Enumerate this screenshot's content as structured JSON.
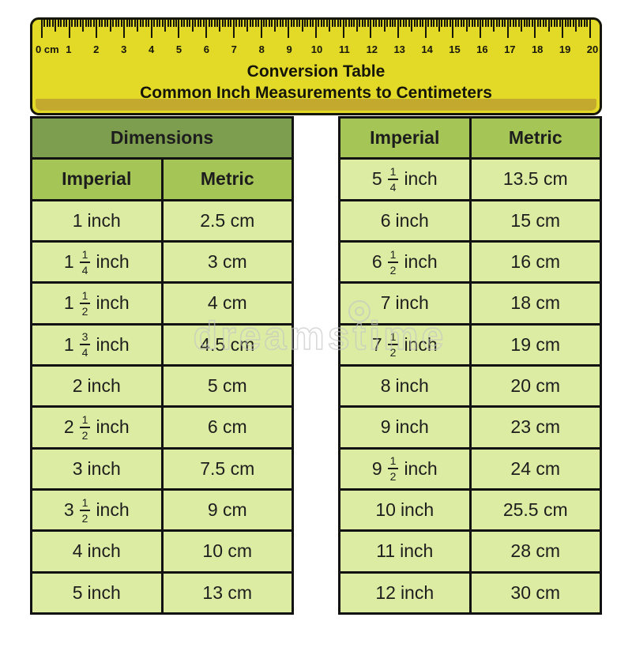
{
  "ruler": {
    "zero_label": "0 cm",
    "cm_numbers": [
      "1",
      "2",
      "3",
      "4",
      "5",
      "6",
      "7",
      "8",
      "9",
      "10",
      "11",
      "12",
      "13",
      "14",
      "15",
      "16",
      "17",
      "18",
      "19",
      "20"
    ],
    "title_line1": "Conversion Table",
    "title_line2": "Common Inch Measurements to Centimeters"
  },
  "left_table": {
    "group_header": "Dimensions",
    "col_imperial": "Imperial",
    "col_metric": "Metric",
    "rows": [
      {
        "whole": "1",
        "num": "",
        "den": "",
        "unit": "inch",
        "metric": "2.5 cm"
      },
      {
        "whole": "1",
        "num": "1",
        "den": "4",
        "unit": "inch",
        "metric": "3 cm"
      },
      {
        "whole": "1",
        "num": "1",
        "den": "2",
        "unit": "inch",
        "metric": "4 cm"
      },
      {
        "whole": "1",
        "num": "3",
        "den": "4",
        "unit": "inch",
        "metric": "4.5 cm"
      },
      {
        "whole": "2",
        "num": "",
        "den": "",
        "unit": "inch",
        "metric": "5 cm"
      },
      {
        "whole": "2",
        "num": "1",
        "den": "2",
        "unit": "inch",
        "metric": "6 cm"
      },
      {
        "whole": "3",
        "num": "",
        "den": "",
        "unit": "inch",
        "metric": "7.5 cm"
      },
      {
        "whole": "3",
        "num": "1",
        "den": "2",
        "unit": "inch",
        "metric": "9 cm"
      },
      {
        "whole": "4",
        "num": "",
        "den": "",
        "unit": "inch",
        "metric": "10 cm"
      },
      {
        "whole": "5",
        "num": "",
        "den": "",
        "unit": "inch",
        "metric": "13 cm"
      }
    ]
  },
  "right_table": {
    "col_imperial": "Imperial",
    "col_metric": "Metric",
    "rows": [
      {
        "whole": "5",
        "num": "1",
        "den": "4",
        "unit": "inch",
        "metric": "13.5 cm"
      },
      {
        "whole": "6",
        "num": "",
        "den": "",
        "unit": "inch",
        "metric": "15 cm"
      },
      {
        "whole": "6",
        "num": "1",
        "den": "2",
        "unit": "inch",
        "metric": "16 cm"
      },
      {
        "whole": "7",
        "num": "",
        "den": "",
        "unit": "inch",
        "metric": "18 cm"
      },
      {
        "whole": "7",
        "num": "1",
        "den": "2",
        "unit": "inch",
        "metric": "19 cm"
      },
      {
        "whole": "8",
        "num": "",
        "den": "",
        "unit": "inch",
        "metric": "20 cm"
      },
      {
        "whole": "9",
        "num": "",
        "den": "",
        "unit": "inch",
        "metric": "23 cm"
      },
      {
        "whole": "9",
        "num": "1",
        "den": "2",
        "unit": "inch",
        "metric": "24 cm"
      },
      {
        "whole": "10",
        "num": "",
        "den": "",
        "unit": "inch",
        "metric": "25.5 cm"
      },
      {
        "whole": "11",
        "num": "",
        "den": "",
        "unit": "inch",
        "metric": "28 cm"
      },
      {
        "whole": "12",
        "num": "",
        "den": "",
        "unit": "inch",
        "metric": "30 cm"
      }
    ]
  },
  "watermark": {
    "text": "dreamstime"
  },
  "colors": {
    "ruler_yellow": "#e3da28",
    "ruler_gold_strip": "#c3a92d",
    "header_dark_green": "#7d9d4f",
    "header_green": "#a5c556",
    "row_light_green": "#dceca3",
    "border_black": "#121212"
  },
  "chart_data": {
    "type": "table",
    "title": "Conversion Table",
    "subtitle": "Common Inch Measurements to Centimeters",
    "columns": [
      "Imperial",
      "Metric"
    ],
    "rows": [
      [
        "1 inch",
        "2.5 cm"
      ],
      [
        "1 1/4 inch",
        "3 cm"
      ],
      [
        "1 1/2 inch",
        "4 cm"
      ],
      [
        "1 3/4 inch",
        "4.5 cm"
      ],
      [
        "2 inch",
        "5 cm"
      ],
      [
        "2 1/2 inch",
        "6 cm"
      ],
      [
        "3 inch",
        "7.5 cm"
      ],
      [
        "3 1/2 inch",
        "9 cm"
      ],
      [
        "4 inch",
        "10 cm"
      ],
      [
        "5 inch",
        "13 cm"
      ],
      [
        "5 1/4 inch",
        "13.5 cm"
      ],
      [
        "6 inch",
        "15 cm"
      ],
      [
        "6 1/2 inch",
        "16 cm"
      ],
      [
        "7 inch",
        "18 cm"
      ],
      [
        "7 1/2 inch",
        "19 cm"
      ],
      [
        "8 inch",
        "20 cm"
      ],
      [
        "9 inch",
        "23 cm"
      ],
      [
        "9 1/2 inch",
        "24 cm"
      ],
      [
        "10 inch",
        "25.5 cm"
      ],
      [
        "11 inch",
        "28 cm"
      ],
      [
        "12 inch",
        "30 cm"
      ]
    ],
    "ruler_scale_cm": [
      0,
      20
    ]
  }
}
